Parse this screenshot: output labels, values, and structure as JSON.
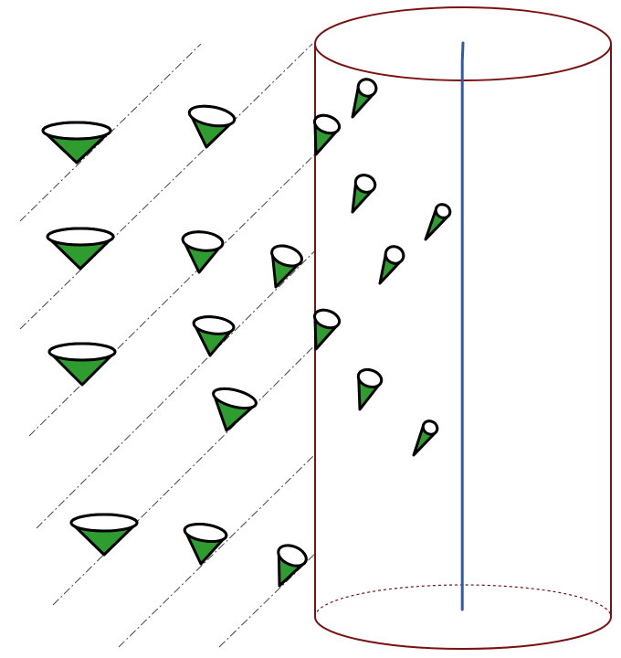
{
  "diagram": {
    "colors": {
      "cylinder": "#7a1212",
      "axis": "#2f5aa8",
      "cone_fill": "#2e9c2e",
      "cone_outline": "#000000",
      "guide_line": "#444444",
      "background": "#ffffff"
    },
    "icons": {
      "cone": "cone-icon",
      "cylinder": "cylinder-shape",
      "axis": "axis-line"
    }
  }
}
